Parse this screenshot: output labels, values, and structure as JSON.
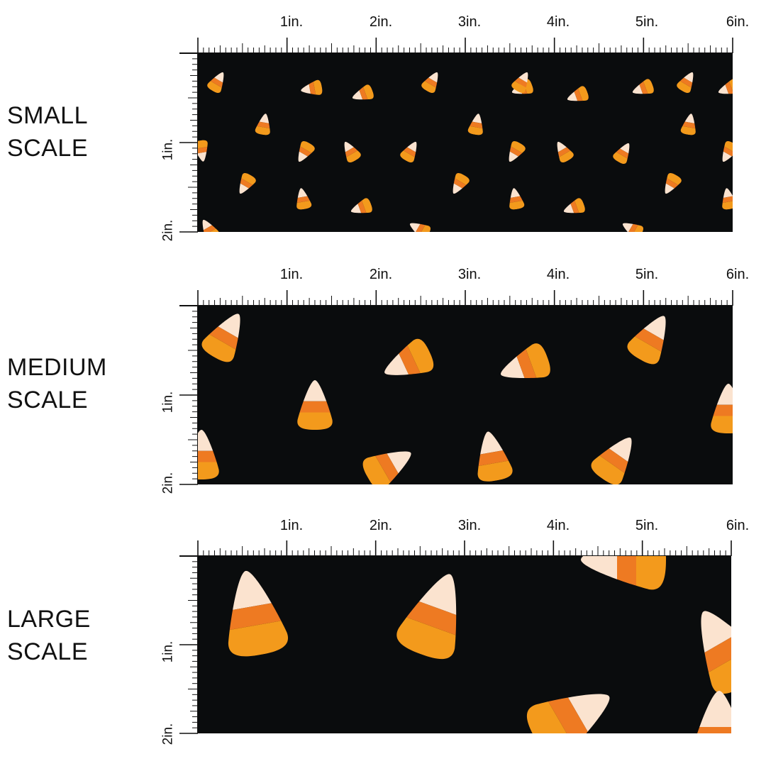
{
  "colors": {
    "background": "#0a0c0d",
    "candy_tip": "#fbe3cf",
    "candy_middle": "#ee7a22",
    "candy_base": "#f39a1c",
    "ruler_ink": "#111111"
  },
  "inch_labels": [
    "1in.",
    "2in.",
    "3in.",
    "4in.",
    "5in.",
    "6in."
  ],
  "side_labels": [
    "1in.",
    "2in."
  ],
  "scales": [
    {
      "id": "small",
      "line1": "SMALL",
      "line2": "SCALE"
    },
    {
      "id": "medium",
      "line1": "MEDIUM",
      "line2": "SCALE"
    },
    {
      "id": "large",
      "line1": "LARGE",
      "line2": "SCALE"
    }
  ]
}
